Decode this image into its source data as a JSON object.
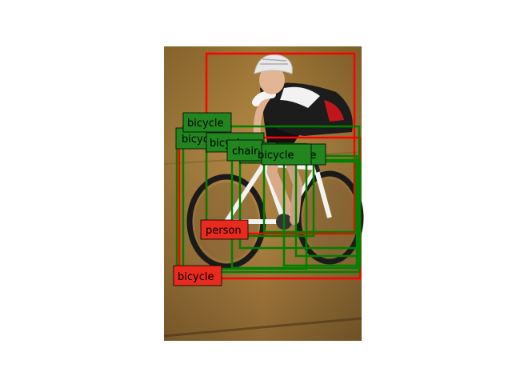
{
  "detections": [
    {
      "label": "person",
      "status": "red"
    },
    {
      "label": "bicycle",
      "status": "red"
    },
    {
      "label": "bicycle",
      "status": "green"
    },
    {
      "label": "bicycle",
      "status": "green"
    },
    {
      "label": "bicycle",
      "status": "green"
    },
    {
      "label": "chair",
      "status": "green"
    },
    {
      "label": "chair",
      "status": "green"
    },
    {
      "label": "bicycle",
      "status": "green"
    },
    {
      "label": "bicycle",
      "status": "green"
    }
  ],
  "colors": {
    "red_box": "#ff0000",
    "green_box": "#008000",
    "red_label_bg": "#e82a1f",
    "green_label_bg": "#22851f",
    "label_text": "#000000"
  }
}
